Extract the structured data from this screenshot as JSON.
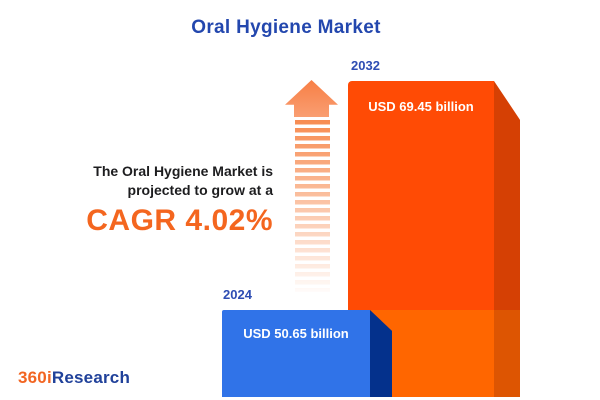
{
  "header": {
    "title": "Oral Hygiene Market"
  },
  "annotation": {
    "line1": "The Oral Hygiene Market is",
    "line2": "projected to grow at a",
    "cagr": "CAGR 4.02%"
  },
  "chart_data": {
    "type": "bar",
    "title": "Oral Hygiene Market",
    "unit": "USD billion",
    "categories": [
      "2024",
      "2032"
    ],
    "values": [
      50.65,
      69.45
    ],
    "bars": [
      {
        "year": "2024",
        "value": 50.65,
        "value_label": "USD 50.65 billion",
        "face_color": "#3073E8",
        "side_color": "#04318C"
      },
      {
        "year": "2032",
        "value": 69.45,
        "value_label": "USD 69.45 billion",
        "face_color": "#FF4B05",
        "side_color": "#D54004"
      }
    ],
    "cagr_percent": 4.02,
    "annotation": "The Oral Hygiene Market is projected to grow at a CAGR 4.02%",
    "style": "3d-bars-with-growth-arrow",
    "legend": "none",
    "axes": "none"
  },
  "logo": {
    "prefix": "360i",
    "suffix": "Research"
  },
  "colors": {
    "title_blue": "#2347AE",
    "year_label_blue": "#2E4DB3",
    "cagr_orange": "#F4661F",
    "annotation_text": "#1D1D1F",
    "arrow_orange": "#F78C52",
    "bar_2024_face": "#3073E8",
    "bar_2024_side": "#04318C",
    "bar_2032_face_top": "#FF4B05",
    "bar_2032_face_bottom": "#FF6600",
    "bar_2032_side_top": "#D54004",
    "bar_2032_side_bottom": "#DD5502",
    "logo_orange": "#F26522",
    "logo_blue": "#20419A",
    "background": "#FFFFFF"
  }
}
